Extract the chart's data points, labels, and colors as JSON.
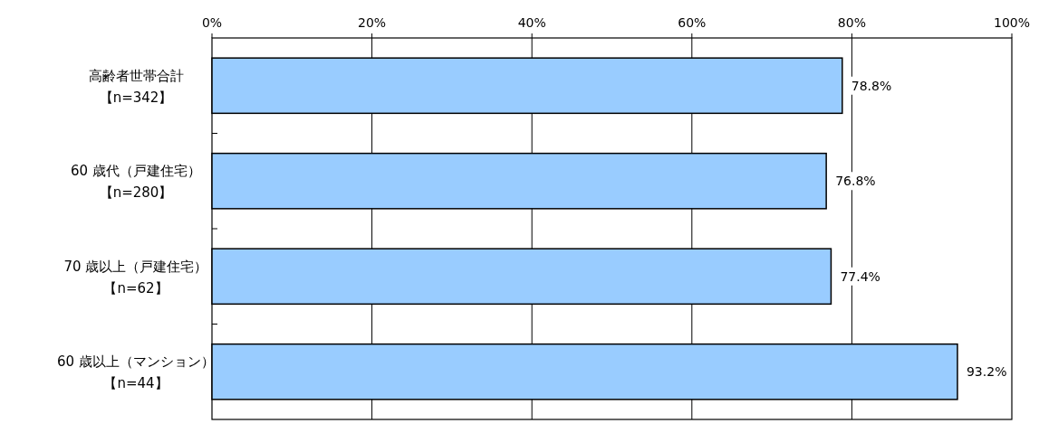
{
  "chart_data": {
    "type": "bar",
    "orientation": "horizontal",
    "categories": [
      "高齢者世帯合計【n=342】",
      "60 歳代（戸建住宅）【n=280】",
      "70 歳以上（戸建住宅）【n=62】",
      "60 歳以上（マンション）【n=44】"
    ],
    "values": [
      78.8,
      76.8,
      77.4,
      93.2
    ],
    "value_labels": [
      "78.8%",
      "76.8%",
      "77.4%",
      "93.2%"
    ],
    "color": "#99ccff",
    "xlim": [
      0,
      100
    ],
    "xticks": [
      {
        "value": 0,
        "label": "0%"
      },
      {
        "value": 20,
        "label": "20%"
      },
      {
        "value": 40,
        "label": "40%"
      },
      {
        "value": 60,
        "label": "60%"
      },
      {
        "value": 80,
        "label": "80%"
      },
      {
        "value": 100,
        "label": "100%"
      }
    ],
    "grid": "x"
  }
}
